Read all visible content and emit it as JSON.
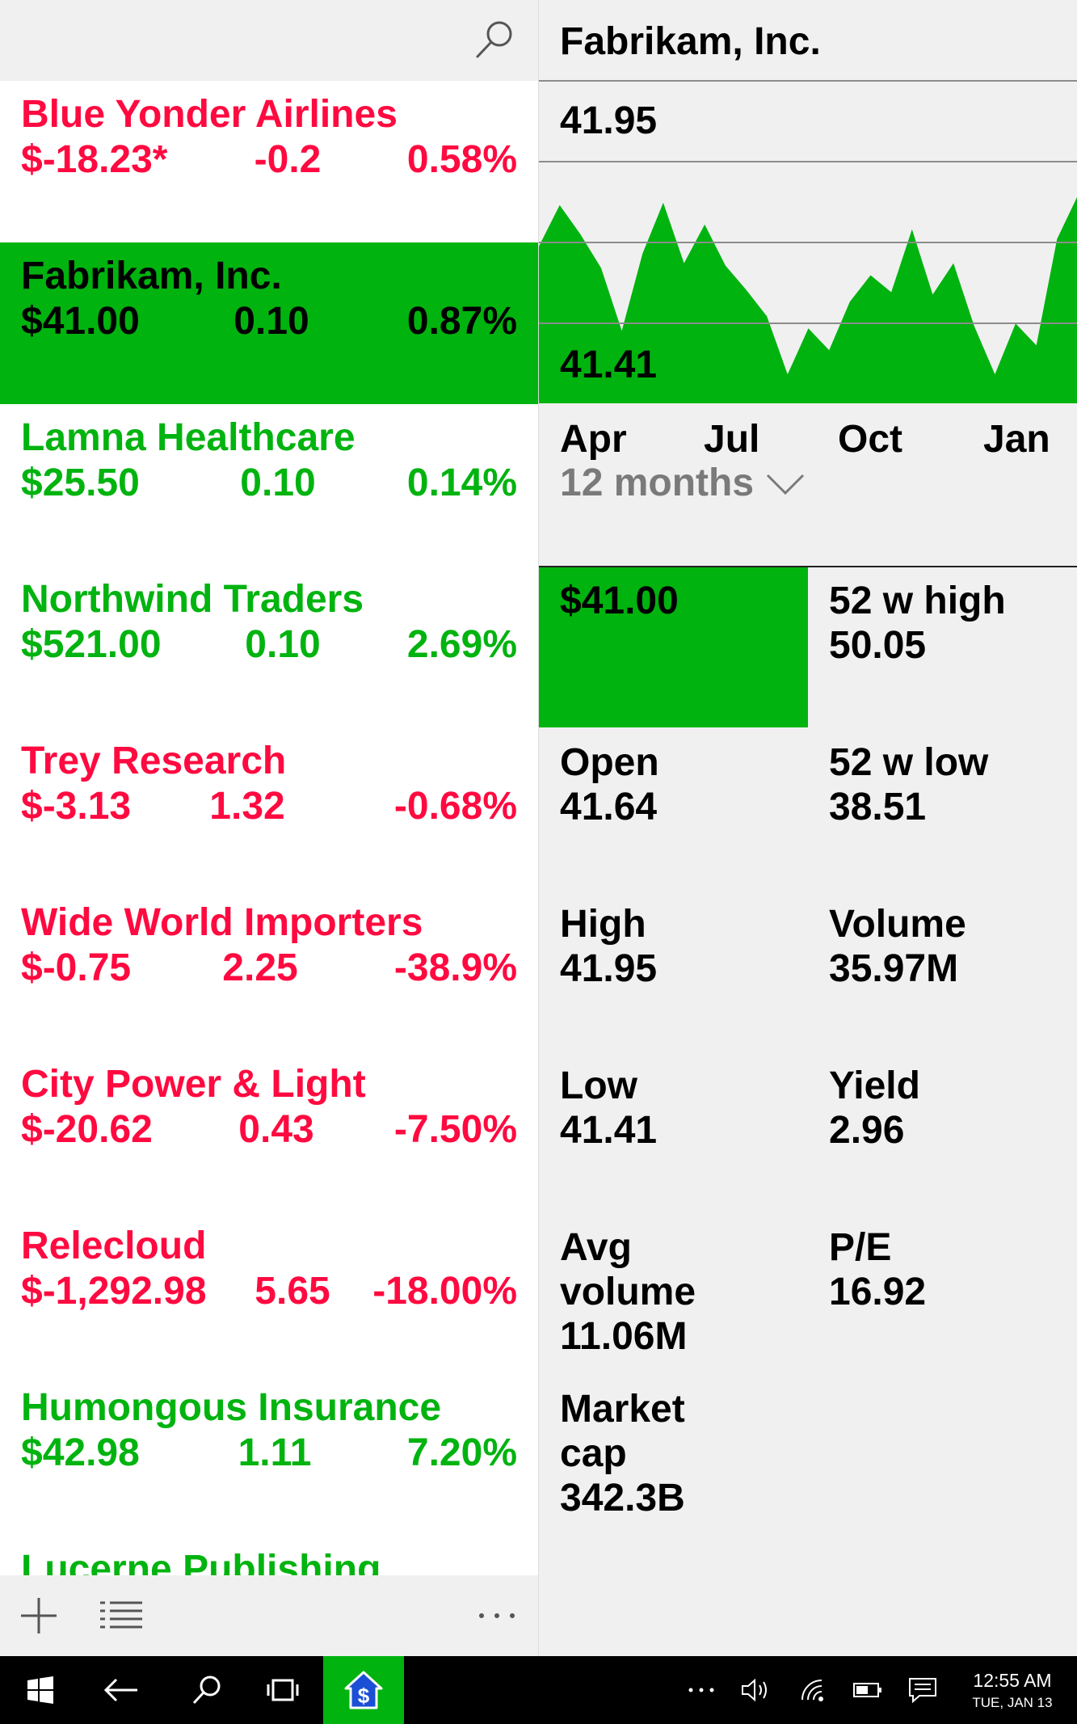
{
  "colors": {
    "up": "#00b30f",
    "down": "#ff0a40",
    "selected_bg": "#00b30f",
    "selected_text": "#000000",
    "pane_bg": "#f0f0f0",
    "taskbar_bg": "#000000"
  },
  "left": {
    "search_icon": "search-icon",
    "stocks": [
      {
        "name": "Blue Yonder Airlines",
        "price": "$-18.23*",
        "change": "-0.2",
        "percent": "0.58%",
        "trend": "down",
        "selected": false
      },
      {
        "name": "Fabrikam, Inc.",
        "price": "$41.00",
        "change": "0.10",
        "percent": "0.87%",
        "trend": "up",
        "selected": true
      },
      {
        "name": "Lamna Healthcare",
        "price": "$25.50",
        "change": "0.10",
        "percent": "0.14%",
        "trend": "up",
        "selected": false
      },
      {
        "name": "Northwind Traders",
        "price": "$521.00",
        "change": "0.10",
        "percent": "2.69%",
        "trend": "up",
        "selected": false
      },
      {
        "name": "Trey Research",
        "price": "$-3.13",
        "change": "1.32",
        "percent": "-0.68%",
        "trend": "down",
        "selected": false
      },
      {
        "name": "Wide World Importers",
        "price": "$-0.75",
        "change": "2.25",
        "percent": "-38.9%",
        "trend": "down",
        "selected": false
      },
      {
        "name": "City Power & Light",
        "price": "$-20.62",
        "change": "0.43",
        "percent": "-7.50%",
        "trend": "down",
        "selected": false
      },
      {
        "name": "Relecloud",
        "price": "$-1,292.98",
        "change": "5.65",
        "percent": "-18.00%",
        "trend": "down",
        "selected": false
      },
      {
        "name": "Humongous Insurance",
        "price": "$42.98",
        "change": "1.11",
        "percent": "7.20%",
        "trend": "up",
        "selected": false
      },
      {
        "name": "Lucerne Publishing",
        "price": "",
        "change": "",
        "percent": "",
        "trend": "up",
        "selected": false
      }
    ],
    "footer": {
      "add_icon": "plus-icon",
      "list_icon": "list-icon",
      "more_icon": "ellipsis-icon"
    }
  },
  "detail": {
    "title": "Fabrikam, Inc.",
    "chart_high_label": "41.95",
    "chart_low_label": "41.41",
    "months": [
      "Apr",
      "Jul",
      "Oct",
      "Jan"
    ],
    "range": "12 months",
    "range_icon": "chevron-down-icon",
    "current_price": "$41.00",
    "stats": [
      {
        "label": "52 w high",
        "value": "50.05"
      },
      {
        "label": "Open",
        "value": "41.64"
      },
      {
        "label": "52 w low",
        "value": "38.51"
      },
      {
        "label": "High",
        "value": "41.95"
      },
      {
        "label": "Volume",
        "value": "35.97M"
      },
      {
        "label": "Low",
        "value": "41.41"
      },
      {
        "label": "Yield",
        "value": "2.96"
      },
      {
        "label": "Avg volume",
        "value": "11.06M"
      },
      {
        "label": "P/E",
        "value": "16.92"
      },
      {
        "label": "Market cap",
        "value": "342.3B"
      }
    ],
    "chart_series": [
      0.65,
      0.82,
      0.7,
      0.56,
      0.3,
      0.62,
      0.83,
      0.58,
      0.74,
      0.57,
      0.47,
      0.36,
      0.12,
      0.31,
      0.22,
      0.42,
      0.53,
      0.46,
      0.72,
      0.45,
      0.58,
      0.32,
      0.12,
      0.33,
      0.24,
      0.68,
      0.86
    ]
  },
  "taskbar": {
    "start_icon": "windows-start-icon",
    "back_icon": "back-arrow-icon",
    "search_icon": "search-icon",
    "task_view_icon": "task-view-icon",
    "app_icon": "stocks-app-icon",
    "overflow_icon": "ellipsis-icon",
    "volume_icon": "volume-icon",
    "wifi_icon": "wifi-icon",
    "battery_icon": "battery-icon",
    "notifications_icon": "action-center-icon",
    "time": "12:55 AM",
    "date": "TUE, JAN 13"
  }
}
